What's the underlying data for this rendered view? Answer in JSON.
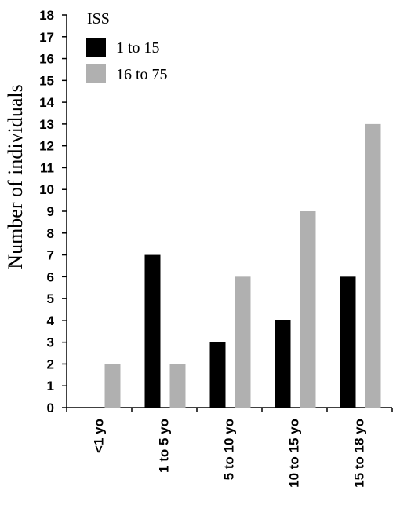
{
  "chart_data": {
    "type": "bar",
    "categories": [
      "<1 yo",
      "1 to 5 yo",
      "5 to 10 yo",
      "10 to 15 yo",
      "15 to 18 yo"
    ],
    "series": [
      {
        "name": "1 to 15",
        "values": [
          0,
          7,
          3,
          4,
          6
        ],
        "color": "#000000"
      },
      {
        "name": "16 to 75",
        "values": [
          2,
          2,
          6,
          9,
          13
        ],
        "color": "#b0b0b0"
      }
    ],
    "ylabel": "Number of individuals",
    "xlabel": "",
    "title": "",
    "ylim": [
      0,
      18
    ],
    "yticks": [
      0,
      1,
      2,
      3,
      4,
      5,
      6,
      7,
      8,
      9,
      10,
      11,
      12,
      13,
      14,
      15,
      16,
      17,
      18
    ],
    "legend": {
      "title": "ISS",
      "position": "top-left"
    },
    "grid": false
  }
}
